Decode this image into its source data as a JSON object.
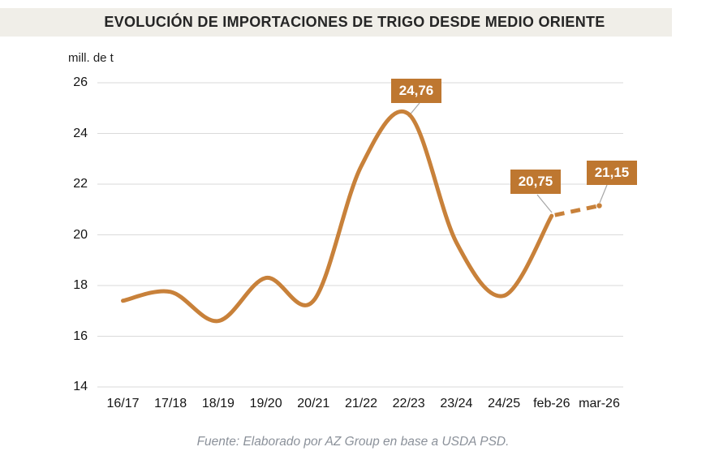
{
  "header": {
    "title": "EVOLUCIÓN DE IMPORTACIONES DE TRIGO DESDE MEDIO ORIENTE",
    "background": "#F0EEE8",
    "text_color": "#252525"
  },
  "footer": {
    "source": "Fuente: Elaborado por AZ Group en base a USDA PSD.",
    "color": "#8B919A"
  },
  "chart_data": {
    "type": "line",
    "title": "EVOLUCIÓN DE IMPORTACIONES DE TRIGO DESDE MEDIO ORIENTE",
    "unit_label": "mill. de t",
    "categories": [
      "16/17",
      "17/18",
      "18/19",
      "19/20",
      "20/21",
      "21/22",
      "22/23",
      "23/24",
      "24/25",
      "feb-26",
      "mar-26"
    ],
    "values": [
      17.4,
      17.75,
      16.6,
      18.3,
      17.4,
      22.7,
      24.76,
      19.7,
      17.6,
      20.75,
      21.15
    ],
    "solid_segment_last_index": 9,
    "dashed_segment": {
      "from_index": 9,
      "to_index": 10,
      "style": "dashed",
      "meaning": "projection"
    },
    "ylim": [
      14,
      26
    ],
    "yticks": [
      26,
      24,
      22,
      20,
      18,
      16,
      14
    ],
    "xlabel": "",
    "ylabel": "mill. de t",
    "grid": "horizontal",
    "legend": "none",
    "line_color": "#C8813A",
    "grid_color": "#DADADA",
    "leader_line_color": "#A6A6A6",
    "annotation_box_color": "#BE7730",
    "annotation_text_color": "#FFFFFF",
    "annotations": [
      {
        "text": "24,76",
        "value": 24.76,
        "index": 6,
        "category": "22/23"
      },
      {
        "text": "20,75",
        "value": 20.75,
        "index": 9,
        "category": "feb-26"
      },
      {
        "text": "21,15",
        "value": 21.15,
        "index": 10,
        "category": "mar-26"
      }
    ],
    "source": "Fuente: Elaborado por AZ Group en base a USDA PSD."
  }
}
